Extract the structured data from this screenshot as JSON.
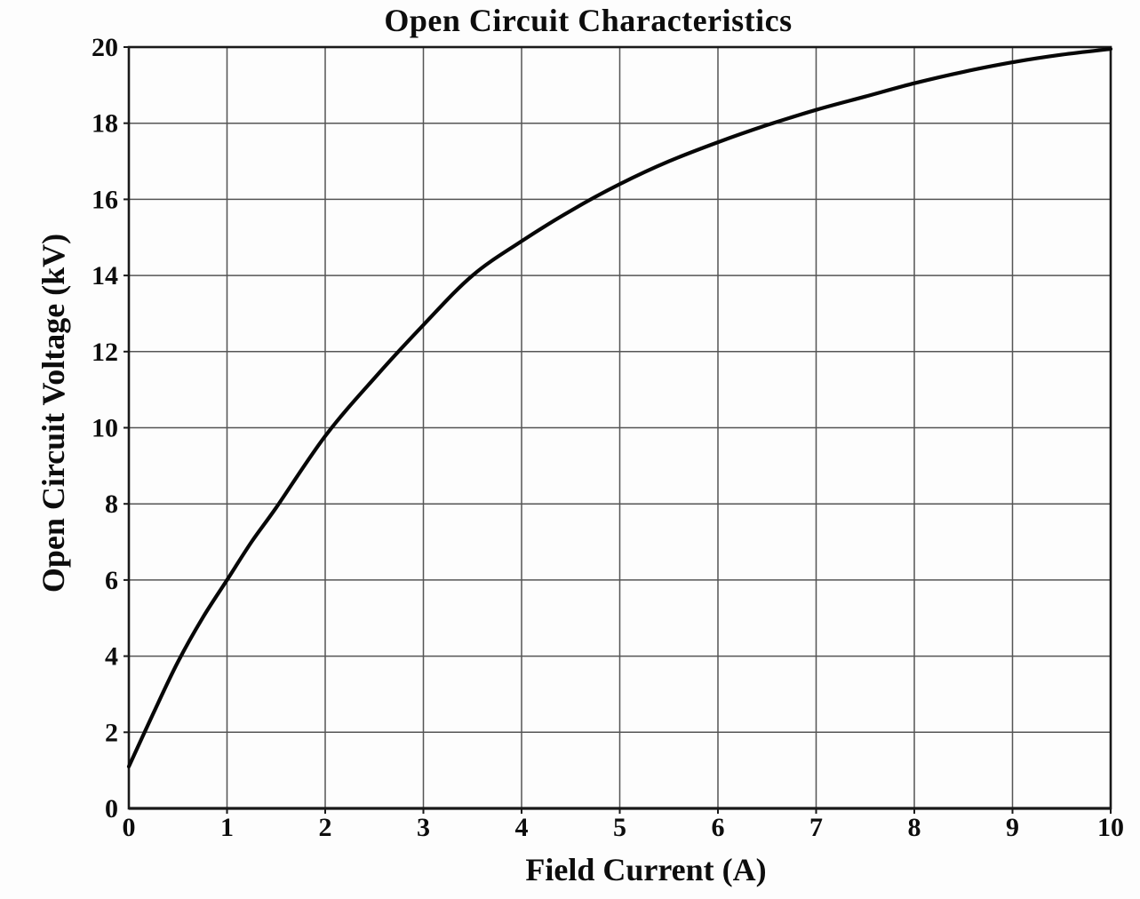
{
  "figure": {
    "title": "Open Circuit Characteristics",
    "xlabel": "Field Current (A)",
    "ylabel": "Open Circuit Voltage (kV)"
  },
  "chart_data": {
    "type": "line",
    "title": "Open Circuit Characteristics",
    "xlabel": "Field Current (A)",
    "ylabel": "Open Circuit Voltage (kV)",
    "xlim": [
      0,
      10
    ],
    "ylim": [
      0,
      20
    ],
    "x_ticks": [
      0,
      1,
      2,
      3,
      4,
      5,
      6,
      7,
      8,
      9,
      10
    ],
    "y_ticks": [
      0,
      2,
      4,
      6,
      8,
      10,
      12,
      14,
      16,
      18,
      20
    ],
    "grid": true,
    "legend": "none",
    "series": [
      {
        "name": "Open Circuit Voltage",
        "x": [
          0,
          0.25,
          0.5,
          0.75,
          1,
          1.25,
          1.5,
          2,
          2.5,
          3,
          3.5,
          4,
          4.5,
          5,
          5.5,
          6,
          6.5,
          7,
          7.5,
          8,
          8.5,
          9,
          9.5,
          10
        ],
        "y": [
          1.1,
          2.5,
          3.85,
          5.0,
          6.0,
          7.0,
          7.9,
          9.78,
          11.3,
          12.7,
          14.0,
          14.9,
          15.7,
          16.4,
          17.0,
          17.5,
          17.95,
          18.35,
          18.7,
          19.05,
          19.35,
          19.6,
          19.8,
          19.95
        ]
      }
    ],
    "colors": {
      "curve": "#070707",
      "grid": "#555555",
      "axis": "#191919",
      "text": "#0d0d0d",
      "background": "#fdfdfd"
    }
  }
}
